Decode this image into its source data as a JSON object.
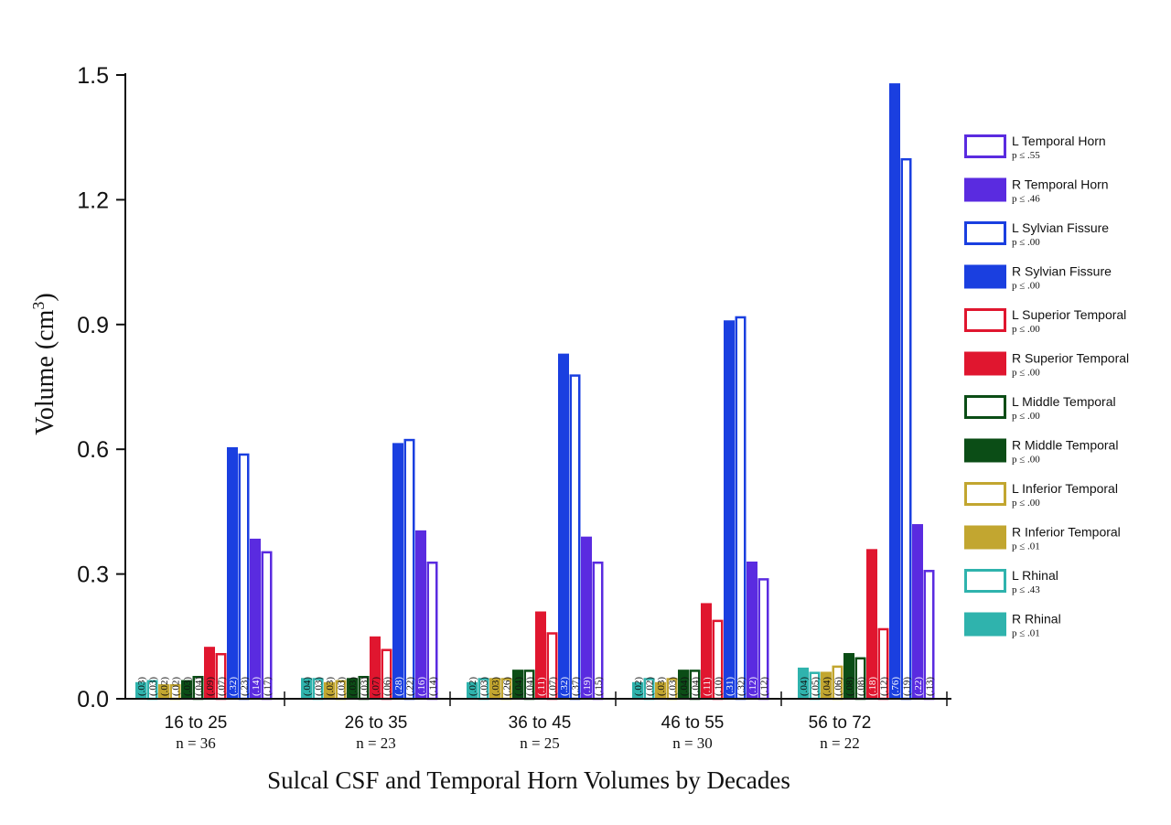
{
  "chart_data": {
    "type": "bar",
    "ylabel": "Volume (cm",
    "ylabel_sup": "3",
    "ylabel_close": ")",
    "xlabel": "Sulcal CSF and Temporal Horn Volumes by Decades",
    "ylim": [
      0,
      1.5
    ],
    "yticks": [
      "0.0",
      "0.3",
      "0.6",
      "0.9",
      "1.2",
      "1.5"
    ],
    "ytick_values": [
      0,
      0.3,
      0.6,
      0.9,
      1.2,
      1.5
    ],
    "categories": [
      "16 to 25",
      "26 to 35",
      "36 to 45",
      "46 to 55",
      "56 to 72"
    ],
    "n_labels": [
      "n = 36",
      "n = 23",
      "n = 25",
      "n = 30",
      "n = 22"
    ],
    "series": [
      {
        "name": "R Rhinal",
        "p": "p ≤ .01",
        "color": "#2fb3ad",
        "filled": true,
        "values": [
          0.04,
          0.05,
          0.04,
          0.04,
          0.075
        ],
        "sd": [
          "(.03)",
          "(.04)",
          "(.02)",
          "(.02)",
          "(.04)"
        ]
      },
      {
        "name": "L Rhinal",
        "p": "p ≤ .43",
        "color": "#2fb3ad",
        "filled": false,
        "values": [
          0.045,
          0.05,
          0.05,
          0.05,
          0.065
        ],
        "sd": [
          "(.03)",
          "(.03)",
          "(.03)",
          "(.02)",
          "(.05)"
        ]
      },
      {
        "name": "R Inferior Temporal",
        "p": "p ≤ .01",
        "color": "#c2a630",
        "filled": true,
        "values": [
          0.035,
          0.04,
          0.05,
          0.04,
          0.065
        ],
        "sd": [
          "(.02)",
          "(.03)",
          "(.03)",
          "(.03)",
          "(.04)"
        ]
      },
      {
        "name": "L Inferior Temporal",
        "p": "p ≤ .00",
        "color": "#c2a630",
        "filled": false,
        "values": [
          0.035,
          0.045,
          0.05,
          0.05,
          0.08
        ],
        "sd": [
          "(.02)",
          "(.03)",
          "(.26)",
          "(.03)",
          "(.06)"
        ]
      },
      {
        "name": "R Middle Temporal",
        "p": "p ≤ .00",
        "color": "#0b4d16",
        "filled": true,
        "values": [
          0.045,
          0.05,
          0.07,
          0.07,
          0.11
        ],
        "sd": [
          "(.03)",
          "(.03)",
          "(.04)",
          "(.04)",
          "(.08)"
        ]
      },
      {
        "name": "L Middle Temporal",
        "p": "p ≤ .00",
        "color": "#0b4d16",
        "filled": false,
        "values": [
          0.055,
          0.055,
          0.07,
          0.07,
          0.1
        ],
        "sd": [
          "(.04)",
          "(.03)",
          "(.04)",
          "(.04)",
          "(.08)"
        ]
      },
      {
        "name": "R Superior Temporal",
        "p": "p ≤ .00",
        "color": "#e0162f",
        "filled": true,
        "values": [
          0.125,
          0.15,
          0.21,
          0.23,
          0.36
        ],
        "sd": [
          "(.09)",
          "(.07)",
          "(.11)",
          "(.11)",
          "(.18)"
        ]
      },
      {
        "name": "L Superior Temporal",
        "p": "p ≤ .00",
        "color": "#e0162f",
        "filled": false,
        "values": [
          0.11,
          0.12,
          0.16,
          0.19,
          0.17
        ],
        "sd": [
          "(.07)",
          "(.06)",
          "(.07)",
          "(.10)",
          "(.12)"
        ]
      },
      {
        "name": "R Sylvian Fissure",
        "p": "p ≤ .00",
        "color": "#1a3fe0",
        "filled": true,
        "values": [
          0.605,
          0.615,
          0.83,
          0.91,
          1.48
        ],
        "sd": [
          "(.32)",
          "(.28)",
          "(.32)",
          "(.31)",
          "(.76)"
        ]
      },
      {
        "name": "L Sylvian Fissure",
        "p": "p ≤ .00",
        "color": "#1a3fe0",
        "filled": false,
        "values": [
          0.59,
          0.625,
          0.78,
          0.92,
          1.3
        ],
        "sd": [
          "(.23)",
          "(.22)",
          "(.37)",
          "(.32)",
          "(.19)"
        ]
      },
      {
        "name": "R Temporal Horn",
        "p": "p ≤ .46",
        "color": "#5a2be0",
        "filled": true,
        "values": [
          0.385,
          0.405,
          0.39,
          0.33,
          0.42
        ],
        "sd": [
          "(.14)",
          "(.16)",
          "(.19)",
          "(.12)",
          "(.22)"
        ]
      },
      {
        "name": "L Temporal Horn",
        "p": "p ≤ .55",
        "color": "#5a2be0",
        "filled": false,
        "values": [
          0.355,
          0.33,
          0.33,
          0.29,
          0.31
        ],
        "sd": [
          "(.17)",
          "(.14)",
          "(.15)",
          "(.12)",
          "(.13)"
        ]
      }
    ],
    "legend_position": "right",
    "grid": false
  }
}
